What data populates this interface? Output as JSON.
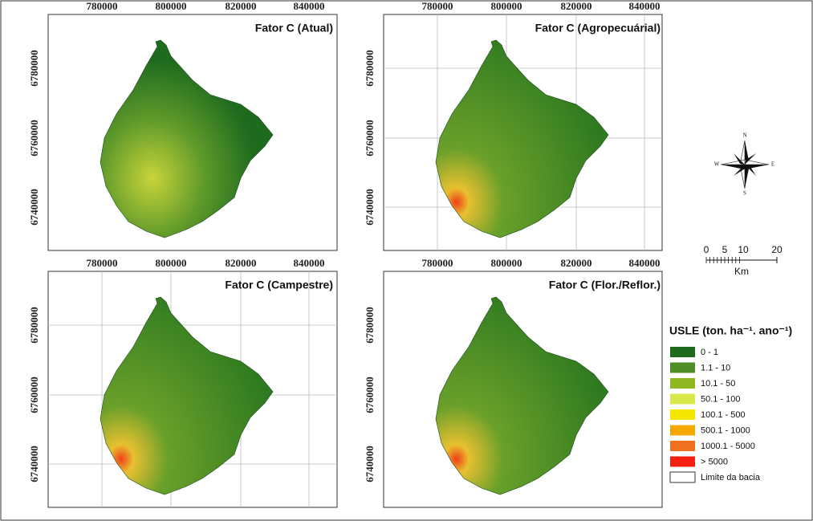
{
  "panels": [
    {
      "title": "Fator C (Atual)",
      "xticks": [
        "780000",
        "800000",
        "820000",
        "840000"
      ],
      "yticks": [
        "6780000",
        "6760000",
        "6740000"
      ],
      "grid": false
    },
    {
      "title": "Fator C (Agropecuárial)",
      "xticks": [
        "780000",
        "800000",
        "820000",
        "840000"
      ],
      "yticks": [
        "6780000",
        "6760000",
        "6740000"
      ],
      "grid": true
    },
    {
      "title": "Fator C (Campestre)",
      "xticks": [
        "780000",
        "800000",
        "820000",
        "840000"
      ],
      "yticks": [
        "6780000",
        "6760000",
        "6740000"
      ],
      "grid": true
    },
    {
      "title": "Fator C (Flor./Reflor.)",
      "xticks": [
        "780000",
        "800000",
        "820000",
        "840000"
      ],
      "yticks": [
        "6780000",
        "6760000",
        "6740000"
      ],
      "grid": false
    }
  ],
  "north_arrow": {
    "n": "N",
    "s": "S",
    "e": "E",
    "w": "W"
  },
  "scale_bar": {
    "ticks": [
      "0",
      "5",
      "10",
      "20"
    ],
    "unit": "Km"
  },
  "legend": {
    "title": "USLE (ton. ha⁻¹. ano⁻¹)",
    "items": [
      {
        "label": "0 - 1",
        "color": "#1e6b1e"
      },
      {
        "label": "1.1 - 10",
        "color": "#4d8f26"
      },
      {
        "label": "10.1 - 50",
        "color": "#8fb820"
      },
      {
        "label": "50.1 - 100",
        "color": "#d8e84a"
      },
      {
        "label": "100.1 - 500",
        "color": "#f5e600"
      },
      {
        "label": "500.1 - 1000",
        "color": "#f5a800"
      },
      {
        "label": "1000.1 - 5000",
        "color": "#f07020"
      },
      {
        "label": "> 5000",
        "color": "#f52010"
      },
      {
        "label": "Limite da bacia",
        "color": "#ffffff"
      }
    ]
  }
}
